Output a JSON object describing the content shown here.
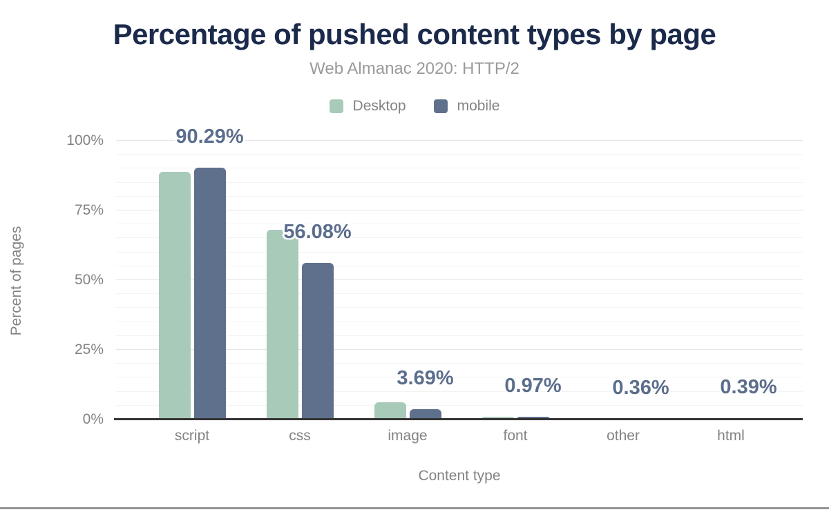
{
  "chart_data": {
    "type": "bar",
    "title": "Percentage of pushed content types by page",
    "subtitle": "Web Almanac 2020: HTTP/2",
    "xlabel": "Content type",
    "ylabel": "Percent of pages",
    "categories": [
      "script",
      "css",
      "image",
      "font",
      "other",
      "html"
    ],
    "series": [
      {
        "name": "Desktop",
        "color": "#a8cab8",
        "values": [
          88.9,
          68.1,
          6.2,
          1.1,
          0.55,
          0.6
        ]
      },
      {
        "name": "mobile",
        "color": "#5f708d",
        "values": [
          90.29,
          56.08,
          3.69,
          0.97,
          0.36,
          0.39
        ]
      }
    ],
    "data_labels": [
      "90.29%",
      "56.08%",
      "3.69%",
      "0.97%",
      "0.36%",
      "0.39%"
    ],
    "data_label_series": "mobile",
    "ylim": [
      0,
      100
    ],
    "yticks": [
      "0%",
      "25%",
      "50%",
      "75%",
      "100%"
    ],
    "grid": {
      "major_step": 25,
      "minor_step": 5
    },
    "legend_position": "top",
    "colors": {
      "title": "#1b2a4b",
      "subtitle": "#9a9a9a",
      "axis_text": "#838383",
      "data_label": "#5c6e8d",
      "axis_line": "#333333",
      "gridline_major": "#e5e5e5",
      "gridline_minor": "#f3f3f3",
      "page_bottom_rule": "#949494"
    }
  }
}
